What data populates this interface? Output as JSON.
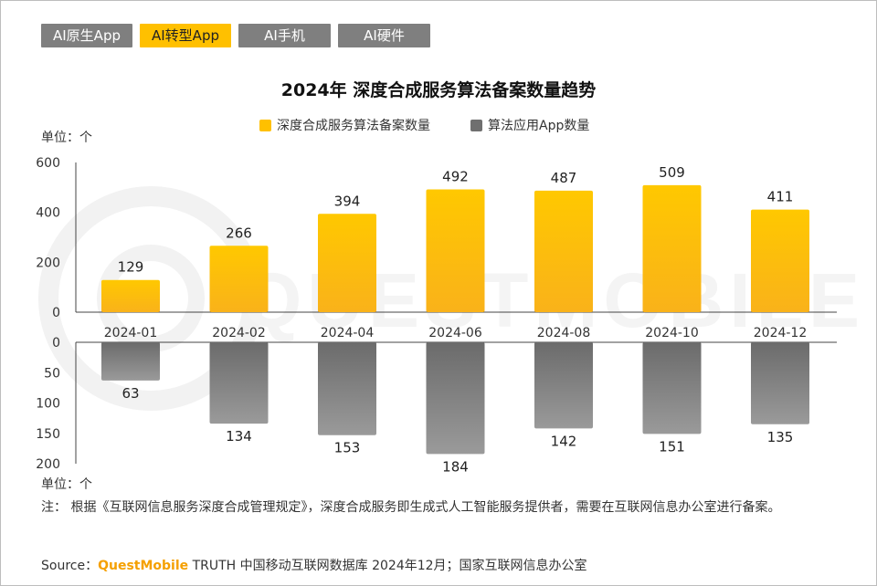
{
  "tabs": [
    {
      "label": "AI原生App",
      "active": false
    },
    {
      "label": "AI转型App",
      "active": true
    },
    {
      "label": "AI手机",
      "active": false
    },
    {
      "label": "AI硬件",
      "active": false
    }
  ],
  "unit_top": "单位：个",
  "unit_bottom": "单位：个",
  "note": "注：  根据《互联网信息服务深度合成管理规定》，深度合成服务即生成式人工智能服务提供者，需要在互联网信息办公室进行备案。",
  "source": {
    "prefix": "Source：",
    "brand": "QuestMobile",
    "rest": " TRUTH 中国移动互联网数据库 2024年12月；国家互联网信息办公室"
  },
  "watermark": "QUESTMOBILE",
  "colors": {
    "accent": "#ffc000",
    "bar_top": "#ffc000",
    "bar_bottom": "#7f7f7f",
    "tab_inactive": "#7f7f7f"
  },
  "chart_data": {
    "type": "bar",
    "title": "2024年 深度合成服务算法备案数量趋势",
    "categories": [
      "2024-01",
      "2024-02",
      "2024-04",
      "2024-06",
      "2024-08",
      "2024-10",
      "2024-12"
    ],
    "series": [
      {
        "name": "深度合成服务算法备案数量",
        "values": [
          129,
          266,
          394,
          492,
          487,
          509,
          411
        ],
        "color": "#ffc000"
      },
      {
        "name": "算法应用App数量",
        "values": [
          63,
          134,
          153,
          184,
          142,
          151,
          135
        ],
        "color": "#7f7f7f"
      }
    ],
    "y_top": {
      "ylim": [
        0,
        600
      ],
      "ticks": [
        0,
        200,
        400,
        600
      ]
    },
    "y_bottom": {
      "ylim": [
        0,
        200
      ],
      "ticks": [
        0,
        50,
        100,
        150,
        200
      ],
      "inverted": true
    },
    "legend": "top-center",
    "grid": false
  }
}
